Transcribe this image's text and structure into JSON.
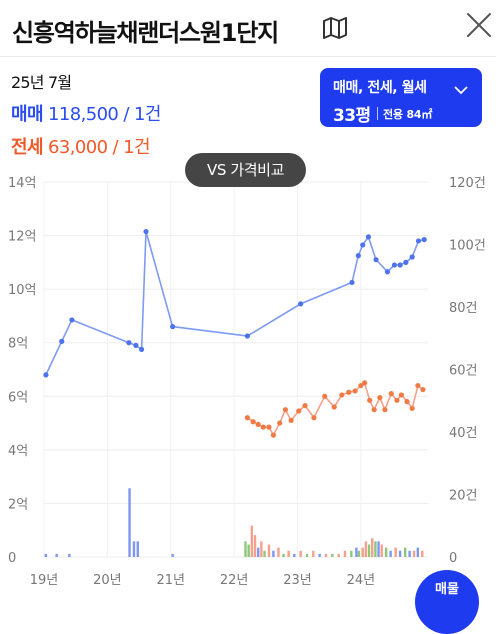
{
  "header": {
    "title": "신흥역하늘채랜더스원1단지",
    "map_icon": "map-icon",
    "close_icon": "close-icon"
  },
  "summary": {
    "period": "25년 7월",
    "sale_type": "매매",
    "sale_value": "118,500 / 1건",
    "jeonse_type": "전세",
    "jeonse_value": "63,000 / 1건"
  },
  "filter": {
    "types": "매매, 전세, 월세",
    "size": "33평",
    "area": "전용 84㎡"
  },
  "compare_button": "VS 가격비교",
  "fab_label": "매물",
  "colors": {
    "accent": "#1f3bef",
    "sale": "#2a4ef0",
    "jeonse": "#f05a2a",
    "sale_line": "#7f9bf0",
    "sale_point": "#4f73ec",
    "jeonse_line": "#f2a08a",
    "jeonse_point": "#f07a45"
  },
  "chart_data": {
    "type": "line",
    "x_tick_labels": [
      "19년",
      "20년",
      "21년",
      "22년",
      "23년",
      "24년"
    ],
    "left_axis": {
      "labels": [
        "0",
        "2억",
        "4억",
        "6억",
        "8억",
        "10억",
        "12억",
        "14억"
      ],
      "range": [
        0,
        14
      ]
    },
    "right_axis": {
      "labels": [
        "0",
        "20건",
        "40건",
        "60건",
        "80건",
        "100건",
        "120건"
      ],
      "range": [
        0,
        120
      ]
    },
    "grid": true,
    "series": [
      {
        "kind": "sale_price_line",
        "points": [
          [
            2019.03,
            6.8
          ],
          [
            2019.28,
            8.05
          ],
          [
            2019.44,
            8.85
          ],
          [
            2020.34,
            8.0
          ],
          [
            2020.45,
            7.9
          ],
          [
            2020.54,
            7.75
          ],
          [
            2020.61,
            12.15
          ],
          [
            2021.03,
            8.6
          ],
          [
            2022.21,
            8.25
          ],
          [
            2023.05,
            9.45
          ],
          [
            2023.86,
            10.25
          ],
          [
            2023.96,
            11.25
          ],
          [
            2024.03,
            11.65
          ],
          [
            2024.12,
            11.95
          ],
          [
            2024.24,
            11.1
          ],
          [
            2024.42,
            10.65
          ],
          [
            2024.53,
            10.9
          ],
          [
            2024.62,
            10.9
          ],
          [
            2024.71,
            11.0
          ],
          [
            2024.81,
            11.2
          ],
          [
            2024.91,
            11.8
          ],
          [
            2025.0,
            11.85
          ]
        ]
      },
      {
        "kind": "jeonse_price_line",
        "points": [
          [
            2022.21,
            5.2
          ],
          [
            2022.3,
            5.05
          ],
          [
            2022.38,
            4.95
          ],
          [
            2022.46,
            4.85
          ],
          [
            2022.55,
            4.85
          ],
          [
            2022.62,
            4.55
          ],
          [
            2022.72,
            5.0
          ],
          [
            2022.81,
            5.5
          ],
          [
            2022.9,
            5.1
          ],
          [
            2023.02,
            5.45
          ],
          [
            2023.12,
            5.65
          ],
          [
            2023.26,
            5.2
          ],
          [
            2023.43,
            6.0
          ],
          [
            2023.58,
            5.6
          ],
          [
            2023.7,
            6.05
          ],
          [
            2023.81,
            6.15
          ],
          [
            2023.91,
            6.2
          ],
          [
            2024.0,
            6.4
          ],
          [
            2024.06,
            6.5
          ],
          [
            2024.14,
            5.85
          ],
          [
            2024.21,
            5.5
          ],
          [
            2024.3,
            5.95
          ],
          [
            2024.38,
            5.5
          ],
          [
            2024.48,
            6.1
          ],
          [
            2024.57,
            5.85
          ],
          [
            2024.64,
            6.05
          ],
          [
            2024.73,
            5.8
          ],
          [
            2024.81,
            5.55
          ],
          [
            2024.9,
            6.4
          ],
          [
            2024.98,
            6.25
          ]
        ]
      },
      {
        "kind": "volume_bars",
        "bars": [
          [
            2019.03,
            1,
            "sale"
          ],
          [
            2019.2,
            1,
            "sale"
          ],
          [
            2019.4,
            1,
            "sale"
          ],
          [
            2020.35,
            22,
            "sale"
          ],
          [
            2020.42,
            5,
            "sale"
          ],
          [
            2020.48,
            5,
            "sale"
          ],
          [
            2021.03,
            1,
            "sale"
          ],
          [
            2022.18,
            5,
            "other"
          ],
          [
            2022.23,
            4,
            "other"
          ],
          [
            2022.28,
            10,
            "jeonse"
          ],
          [
            2022.33,
            7,
            "jeonse"
          ],
          [
            2022.38,
            3,
            "sale"
          ],
          [
            2022.43,
            5,
            "jeonse"
          ],
          [
            2022.48,
            2,
            "other"
          ],
          [
            2022.55,
            4,
            "jeonse"
          ],
          [
            2022.62,
            2,
            "sale"
          ],
          [
            2022.7,
            3,
            "jeonse"
          ],
          [
            2022.78,
            1,
            "other"
          ],
          [
            2022.86,
            2,
            "jeonse"
          ],
          [
            2022.95,
            1,
            "sale"
          ],
          [
            2023.05,
            2,
            "jeonse"
          ],
          [
            2023.15,
            1,
            "other"
          ],
          [
            2023.25,
            2,
            "jeonse"
          ],
          [
            2023.35,
            1,
            "sale"
          ],
          [
            2023.45,
            1,
            "jeonse"
          ],
          [
            2023.55,
            1,
            "other"
          ],
          [
            2023.65,
            1,
            "jeonse"
          ],
          [
            2023.75,
            2,
            "jeonse"
          ],
          [
            2023.85,
            2,
            "other"
          ],
          [
            2023.93,
            3,
            "sale"
          ],
          [
            2023.97,
            2,
            "other"
          ],
          [
            2024.03,
            3,
            "jeonse"
          ],
          [
            2024.08,
            5,
            "jeonse"
          ],
          [
            2024.13,
            4,
            "other"
          ],
          [
            2024.18,
            6,
            "jeonse"
          ],
          [
            2024.23,
            5,
            "other"
          ],
          [
            2024.28,
            5,
            "sale"
          ],
          [
            2024.33,
            4,
            "jeonse"
          ],
          [
            2024.4,
            3,
            "other"
          ],
          [
            2024.47,
            2,
            "sale"
          ],
          [
            2024.55,
            3,
            "jeonse"
          ],
          [
            2024.62,
            2,
            "sale"
          ],
          [
            2024.7,
            3,
            "other"
          ],
          [
            2024.77,
            2,
            "sale"
          ],
          [
            2024.84,
            2,
            "jeonse"
          ],
          [
            2024.9,
            3,
            "sale"
          ],
          [
            2024.97,
            2,
            "jeonse"
          ]
        ]
      }
    ]
  }
}
